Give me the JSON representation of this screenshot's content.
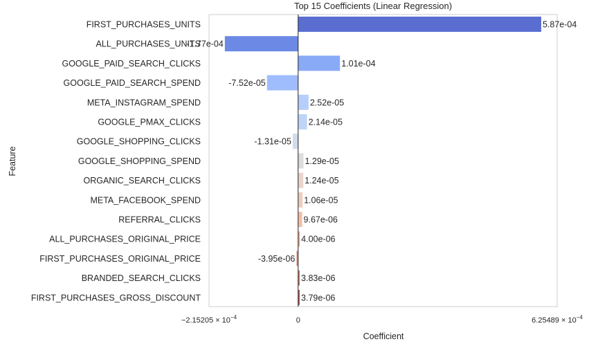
{
  "chart_data": {
    "type": "bar",
    "orientation": "horizontal",
    "title": "Top 15 Coefficients (Linear Regression)",
    "xlabel": "Coefficient",
    "ylabel": "Feature",
    "xlim": [
      -0.000215205,
      0.000625489
    ],
    "x_ticks": [
      {
        "value": -0.000215205,
        "label": "−2.15205 × 10",
        "exp": "−4"
      },
      {
        "value": 0,
        "label": "0",
        "exp": ""
      },
      {
        "value": 0.000625489,
        "label": "6.25489 × 10",
        "exp": "−4"
      }
    ],
    "grid": false,
    "categories": [
      "FIRST_PURCHASES_UNITS",
      "ALL_PURCHASES_UNITS",
      "GOOGLE_PAID_SEARCH_CLICKS",
      "GOOGLE_PAID_SEARCH_SPEND",
      "META_INSTAGRAM_SPEND",
      "GOOGLE_PMAX_CLICKS",
      "GOOGLE_SHOPPING_CLICKS",
      "GOOGLE_SHOPPING_SPEND",
      "ORGANIC_SEARCH_CLICKS",
      "META_FACEBOOK_SPEND",
      "REFERRAL_CLICKS",
      "ALL_PURCHASES_ORIGINAL_PRICE",
      "FIRST_PURCHASES_ORIGINAL_PRICE",
      "BRANDED_SEARCH_CLICKS",
      "FIRST_PURCHASES_GROSS_DISCOUNT"
    ],
    "values": [
      0.000587,
      -0.000177,
      0.000101,
      -7.52e-05,
      2.52e-05,
      2.14e-05,
      -1.31e-05,
      1.29e-05,
      1.24e-05,
      1.06e-05,
      9.67e-06,
      4e-06,
      -3.95e-06,
      3.83e-06,
      3.79e-06
    ],
    "value_labels": [
      "5.87e-04",
      "-1.77e-04",
      "1.01e-04",
      "-7.52e-05",
      "2.52e-05",
      "2.14e-05",
      "-1.31e-05",
      "1.29e-05",
      "1.24e-05",
      "1.06e-05",
      "9.67e-06",
      "4.00e-06",
      "-3.95e-06",
      "3.83e-06",
      "3.79e-06"
    ],
    "colors": [
      "#5a6ed2",
      "#6b89e5",
      "#89aaf7",
      "#9fbdfd",
      "#b7cefa",
      "#bfd4f7",
      "#d1dbeb",
      "#dcdddd",
      "#e9d5cb",
      "#efcdbb",
      "#f2bfa6",
      "#ebab91",
      "#d9917c",
      "#c6766a",
      "#b0585a"
    ]
  }
}
